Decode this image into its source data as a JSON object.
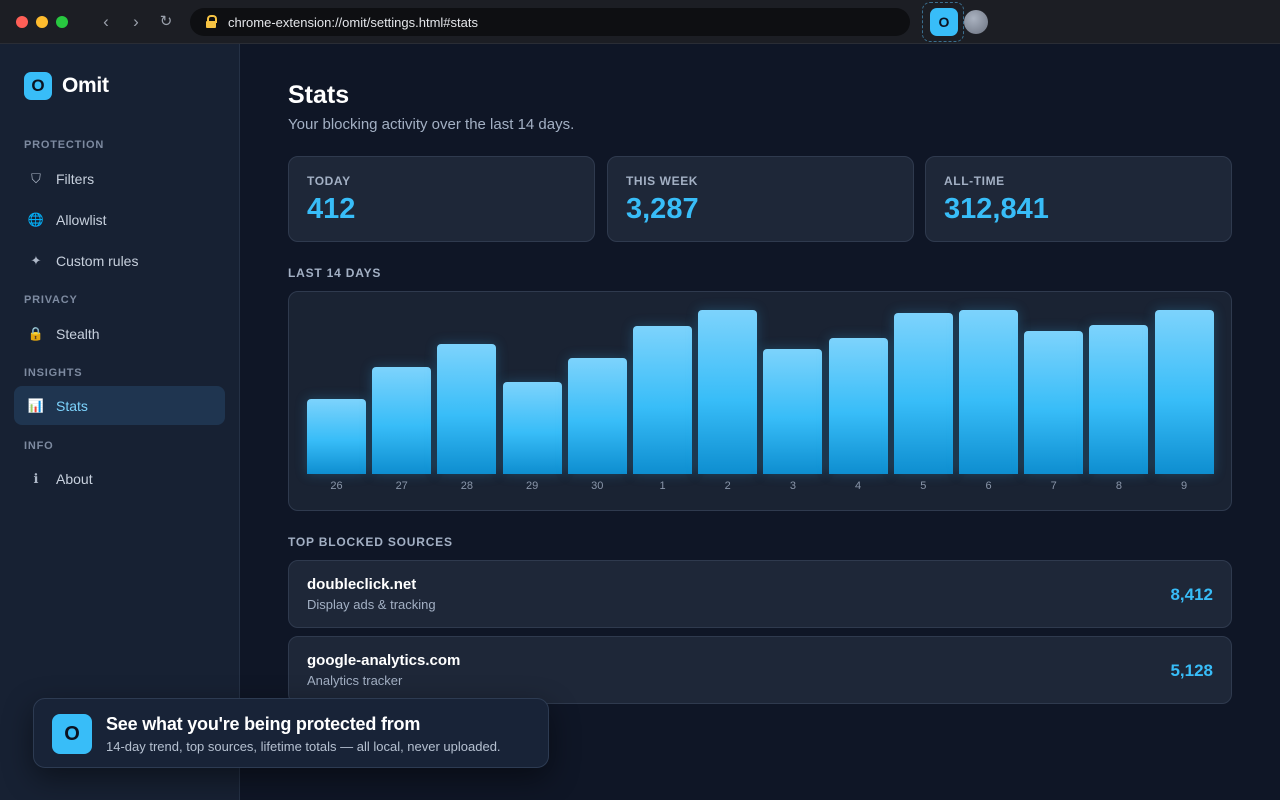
{
  "browser": {
    "url": "chrome-extension://omit/settings.html#stats",
    "back_icon": "‹",
    "forward_icon": "›",
    "reload_icon": "↻",
    "extension_icon_letter": "O"
  },
  "sidebar": {
    "brand_logo": "O",
    "brand_name": "Omit",
    "sections": {
      "protection": "PROTECTION",
      "privacy": "PRIVACY",
      "insights": "INSIGHTS",
      "info": "INFO"
    },
    "items": [
      {
        "label": "Filters",
        "icon": "shield-icon",
        "glyph": "⛉"
      },
      {
        "label": "Allowlist",
        "icon": "globe-icon",
        "glyph": "🌐"
      },
      {
        "label": "Custom rules",
        "icon": "sparkle-icon",
        "glyph": "✦"
      },
      {
        "label": "Stealth",
        "icon": "lock-icon",
        "glyph": "🔒"
      },
      {
        "label": "Stats",
        "icon": "bar-chart-icon",
        "glyph": "📊"
      },
      {
        "label": "About",
        "icon": "info-icon",
        "glyph": "ℹ"
      }
    ],
    "active_item": "Stats"
  },
  "main": {
    "title": "Stats",
    "subtitle": "Your blocking activity over the last 14 days.",
    "stats": [
      {
        "label": "TODAY",
        "value": "412"
      },
      {
        "label": "THIS WEEK",
        "value": "3,287"
      },
      {
        "label": "ALL-TIME",
        "value": "312,841"
      }
    ],
    "chart_heading": "LAST 14 DAYS",
    "sources_heading": "TOP BLOCKED SOURCES",
    "sources": [
      {
        "name": "doubleclick.net",
        "description": "Display ads & tracking",
        "count": "8,412"
      },
      {
        "name": "google-analytics.com",
        "description": "Analytics tracker",
        "count": "5,128"
      }
    ]
  },
  "chart_data": {
    "type": "bar",
    "title": "LAST 14 DAYS",
    "categories": [
      "26",
      "27",
      "28",
      "29",
      "30",
      "1",
      "2",
      "3",
      "4",
      "5",
      "6",
      "7",
      "8",
      "9"
    ],
    "values": [
      46,
      65,
      79,
      56,
      71,
      90,
      100,
      76,
      83,
      98,
      100,
      87,
      91,
      100
    ],
    "ylim": [
      0,
      100
    ],
    "grid": false,
    "colors": {
      "bar_top": "#7dd3fc",
      "bar_mid": "#38bdf8",
      "bar_bottom": "#0e8ed0"
    }
  },
  "toast": {
    "icon_letter": "O",
    "title": "See what you're being protected from",
    "text": "14-day trend, top sources, lifetime totals — all local, never uploaded."
  },
  "colors": {
    "accent": "#38bdf8",
    "background": "#0f1626",
    "sidebar": "#172133",
    "card": "#1e2738"
  }
}
